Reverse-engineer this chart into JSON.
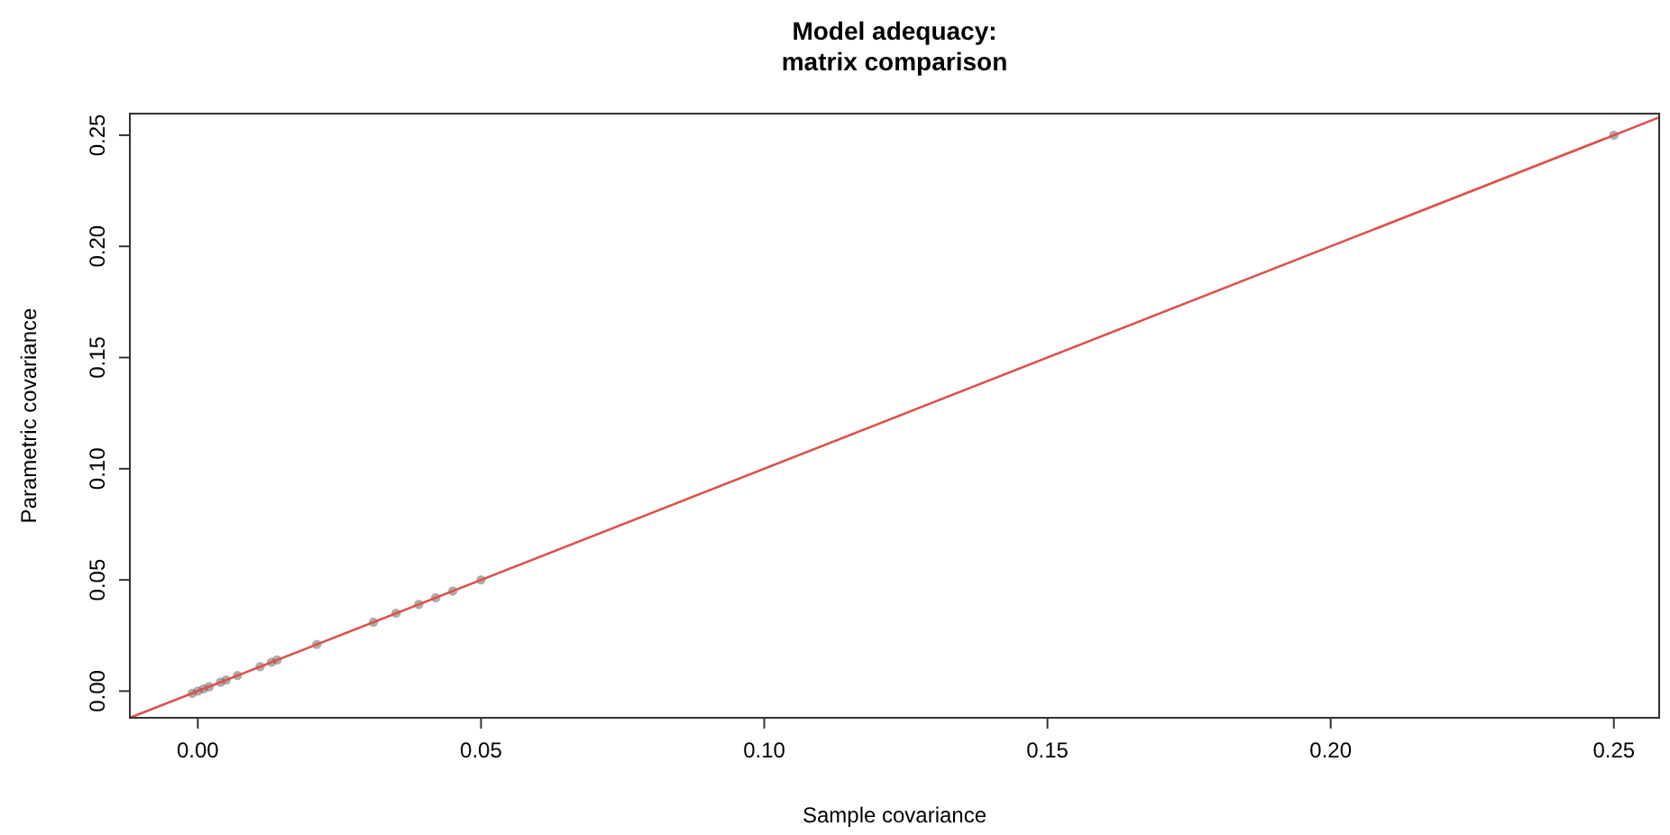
{
  "chart_data": {
    "type": "scatter",
    "title": "Model adequacy:\nmatrix comparison",
    "xlabel": "Sample covariance",
    "ylabel": "Parametric covariance",
    "xlim": [
      -0.012,
      0.258
    ],
    "ylim": [
      -0.012,
      0.2597
    ],
    "xticks": [
      {
        "value": 0,
        "label": "0.00"
      },
      {
        "value": 0.05,
        "label": "0.05"
      },
      {
        "value": 0.1,
        "label": "0.10"
      },
      {
        "value": 0.15,
        "label": "0.15"
      },
      {
        "value": 0.2,
        "label": "0.20"
      },
      {
        "value": 0.25,
        "label": "0.25"
      }
    ],
    "yticks": [
      {
        "value": 0,
        "label": "0.00"
      },
      {
        "value": 0.05,
        "label": "0.05"
      },
      {
        "value": 0.1,
        "label": "0.10"
      },
      {
        "value": 0.15,
        "label": "0.15"
      },
      {
        "value": 0.2,
        "label": "0.20"
      },
      {
        "value": 0.25,
        "label": "0.25"
      }
    ],
    "grid": false,
    "marker": "circle",
    "series": [
      {
        "type": "scatter",
        "color": "#5a4040",
        "x": [
          -0.001,
          0,
          0.001,
          0.002,
          0.004,
          0.005,
          0.007,
          0.011,
          0.013,
          0.014,
          0.021,
          0.031,
          0.035,
          0.039,
          0.042,
          0.045,
          0.05,
          0.25
        ],
        "values": [
          -0.001,
          0,
          0.001,
          0.002,
          0.004,
          0.005,
          0.007,
          0.011,
          0.013,
          0.014,
          0.021,
          0.031,
          0.035,
          0.039,
          0.042,
          0.045,
          0.05,
          0.25
        ]
      },
      {
        "type": "line",
        "color": "#d9534f",
        "line_style": "solid",
        "marker": "none",
        "x": [
          -0.012,
          0.258
        ],
        "values": [
          -0.012,
          0.258
        ]
      }
    ]
  }
}
